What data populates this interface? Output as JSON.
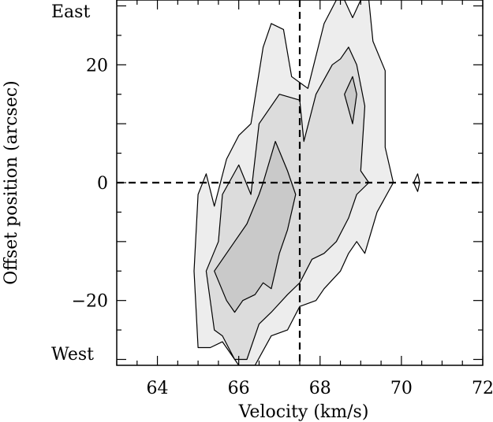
{
  "chart_data": {
    "type": "contour",
    "xlabel": "Velocity (km/s)",
    "ylabel": "Offset position (arcsec)",
    "xlim": [
      63,
      72
    ],
    "ylim": [
      -31,
      31
    ],
    "x_ticks": [
      64,
      66,
      68,
      70,
      72
    ],
    "y_ticks": [
      -20,
      0,
      20
    ],
    "annotations": [
      {
        "text": "East"
      },
      {
        "text": "West"
      }
    ],
    "reference_lines": {
      "velocity": 67.5,
      "offset": 0
    },
    "contour_levels": [
      {
        "level": 1,
        "fill": "#ededed",
        "points": [
          [
            65.0,
            -28
          ],
          [
            64.9,
            -15
          ],
          [
            65.0,
            -2
          ],
          [
            65.2,
            1.5
          ],
          [
            65.4,
            -4
          ],
          [
            65.7,
            4
          ],
          [
            66.0,
            8
          ],
          [
            66.3,
            10
          ],
          [
            66.6,
            23
          ],
          [
            66.8,
            27
          ],
          [
            67.1,
            26
          ],
          [
            67.3,
            18
          ],
          [
            67.7,
            16
          ],
          [
            68.1,
            27
          ],
          [
            68.4,
            31
          ],
          [
            68.6,
            31
          ],
          [
            68.8,
            28
          ],
          [
            69.0,
            31
          ],
          [
            69.2,
            31
          ],
          [
            69.3,
            24
          ],
          [
            69.6,
            19
          ],
          [
            69.6,
            6
          ],
          [
            69.8,
            0
          ],
          [
            69.4,
            -5
          ],
          [
            69.1,
            -12
          ],
          [
            68.9,
            -10
          ],
          [
            68.7,
            -12
          ],
          [
            68.5,
            -15
          ],
          [
            68.1,
            -18
          ],
          [
            67.9,
            -20
          ],
          [
            67.5,
            -21
          ],
          [
            67.2,
            -25
          ],
          [
            66.8,
            -26
          ],
          [
            66.4,
            -31
          ],
          [
            66.0,
            -31
          ],
          [
            65.6,
            -27
          ],
          [
            65.3,
            -28
          ]
        ]
      },
      {
        "level": 2,
        "fill": "#dcdcdc",
        "points": [
          [
            65.4,
            -25
          ],
          [
            65.2,
            -15
          ],
          [
            65.5,
            -10
          ],
          [
            65.6,
            -2
          ],
          [
            66.0,
            3
          ],
          [
            66.3,
            -2
          ],
          [
            66.5,
            10
          ],
          [
            67.0,
            15
          ],
          [
            67.5,
            14
          ],
          [
            67.6,
            7
          ],
          [
            67.9,
            15
          ],
          [
            68.3,
            20
          ],
          [
            68.5,
            21
          ],
          [
            68.7,
            23
          ],
          [
            68.9,
            20
          ],
          [
            69.1,
            13
          ],
          [
            69.0,
            2
          ],
          [
            69.2,
            0
          ],
          [
            68.9,
            -2
          ],
          [
            68.7,
            -6
          ],
          [
            68.4,
            -10
          ],
          [
            68.1,
            -12
          ],
          [
            67.8,
            -13
          ],
          [
            67.5,
            -17
          ],
          [
            67.2,
            -19
          ],
          [
            66.8,
            -22
          ],
          [
            66.5,
            -24
          ],
          [
            66.2,
            -30
          ],
          [
            65.9,
            -30
          ],
          [
            65.6,
            -26
          ]
        ]
      },
      {
        "level": 3,
        "fill": "#c9c9c9",
        "points": [
          [
            65.7,
            -20
          ],
          [
            65.4,
            -15
          ],
          [
            65.9,
            -10
          ],
          [
            66.2,
            -7
          ],
          [
            66.5,
            -2
          ],
          [
            66.6,
            0
          ],
          [
            66.9,
            7
          ],
          [
            67.2,
            2
          ],
          [
            67.4,
            -2
          ],
          [
            67.2,
            -8
          ],
          [
            67.0,
            -12
          ],
          [
            66.9,
            -15
          ],
          [
            66.8,
            -18
          ],
          [
            66.6,
            -17
          ],
          [
            66.4,
            -19
          ],
          [
            66.1,
            -20
          ],
          [
            65.9,
            -22
          ]
        ]
      },
      {
        "level": 4,
        "fill": "#c9c9c9",
        "points": [
          [
            68.6,
            15
          ],
          [
            68.8,
            10
          ],
          [
            68.9,
            15
          ],
          [
            68.8,
            18
          ]
        ]
      },
      {
        "level": 5,
        "fill": "#ffffff",
        "points": [
          [
            70.3,
            0
          ],
          [
            70.4,
            -1.5
          ],
          [
            70.45,
            0
          ],
          [
            70.4,
            1.5
          ]
        ]
      }
    ]
  }
}
